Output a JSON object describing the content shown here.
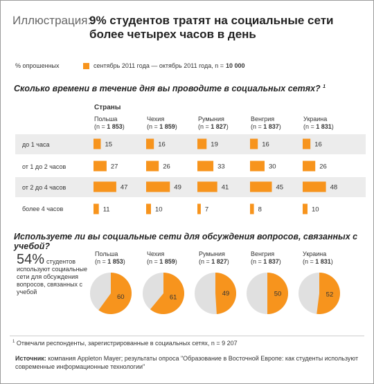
{
  "header": {
    "label": "Иллюстрация:",
    "title": "9% студентов тратят на социальные сети более четырех часов в день"
  },
  "percent_note": "%  опрошенных",
  "legend": {
    "text": "сентябрь 2011 года — октябрь 2011 года, n = ",
    "n_value": "10 000"
  },
  "colors": {
    "accent": "#f7941d",
    "pie_rest": "#e0e0e0",
    "row_bg": "#ececec"
  },
  "question1": "Сколько времени в течение дня вы проводите в социальных сетях?",
  "question1_mark": "1",
  "countries_heading": "Страны",
  "countries": [
    {
      "name": "Польша",
      "n_prefix": "(n = ",
      "n": "1 853",
      "n_suffix": ")"
    },
    {
      "name": "Чехия",
      "n_prefix": "(n = ",
      "n": "1 859",
      "n_suffix": ")"
    },
    {
      "name": "Румыния",
      "n_prefix": "(n = ",
      "n": "1 827",
      "n_suffix": ")"
    },
    {
      "name": "Венгрия",
      "n_prefix": "(n = ",
      "n": "1 837",
      "n_suffix": ")"
    },
    {
      "name": "Украина",
      "n_prefix": "(n = ",
      "n": "1 831",
      "n_suffix": ")"
    }
  ],
  "chart_data": [
    {
      "type": "bar",
      "title": "Сколько времени в течение дня вы проводите в социальных сетях?",
      "categories": [
        "до 1 часа",
        "от 1 до 2 часов",
        "от 2 до 4 часов",
        "более 4 часов"
      ],
      "series": [
        {
          "name": "Польша",
          "values": [
            15,
            27,
            47,
            11
          ]
        },
        {
          "name": "Чехия",
          "values": [
            16,
            26,
            49,
            10
          ]
        },
        {
          "name": "Румыния",
          "values": [
            19,
            33,
            41,
            7
          ]
        },
        {
          "name": "Венгрия",
          "values": [
            16,
            30,
            45,
            8
          ]
        },
        {
          "name": "Украина",
          "values": [
            16,
            26,
            48,
            10
          ]
        }
      ]
    },
    {
      "type": "pie",
      "title": "Используете ли вы социальные сети для обсуждения вопросов, связанных с учебой?",
      "categories": [
        "Польша",
        "Чехия",
        "Румыния",
        "Венгрия",
        "Украина"
      ],
      "values": [
        60,
        61,
        49,
        50,
        52
      ]
    }
  ],
  "question2": "Используете ли вы социальные сети для обсуждения вопросов, связанных с учебой?",
  "big_stat": {
    "value": "54%",
    "text": "студентов используют социальные сети для обсуждения вопросов, связанных с учебой"
  },
  "footnote": {
    "mark": "1",
    "text": "Отвечали респонденты, зарегистрированные в социальных сетях,  n = 9 207"
  },
  "source": {
    "label": "Источник:",
    "text": "компания Appleton Mayer; результаты опроса \"Образование в Восточной Европе: как студенты используют современные информационные технологии\""
  }
}
